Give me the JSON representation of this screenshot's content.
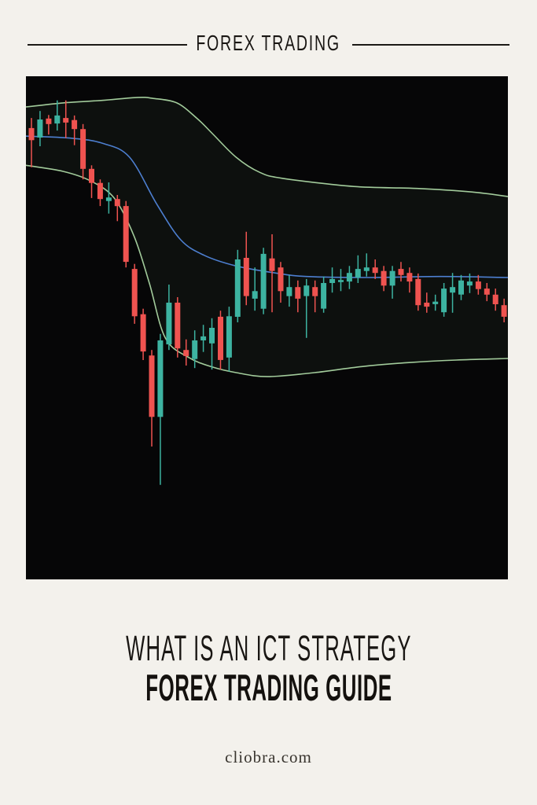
{
  "page": {
    "background": "#f3f1ec"
  },
  "header": {
    "label": "FOREX TRADING"
  },
  "title": {
    "line1": "WHAT IS AN ICT STRATEGY",
    "line2": "FOREX TRADING GUIDE"
  },
  "footer": {
    "site": "cliobra.com"
  },
  "chart_data": {
    "type": "candlestick",
    "title": "",
    "subtitle": "",
    "axes_visible": false,
    "grid": false,
    "legend": false,
    "indicator": "bollinger-bands",
    "background": "#060607",
    "colors": {
      "bullish": "#3db3a1",
      "bearish": "#ef5350",
      "band_line": "#a2cb9b",
      "middle_line": "#4d7fd0",
      "band_fill": "rgba(140,190,140,0.06)"
    },
    "price_scale": {
      "min": 0,
      "max": 100,
      "note": "normalized price units; chart shows no axis labels"
    },
    "candle_fields": [
      "direction(r=bearish,g=bullish)",
      "body_high",
      "body_low",
      "wick_high",
      "wick_low"
    ],
    "candles": [
      [
        "r",
        89.7,
        87.3,
        91.7,
        81.9
      ],
      [
        "g",
        91.4,
        87.8,
        93.1,
        86.1
      ],
      [
        "r",
        91.6,
        90.5,
        92.3,
        88.4
      ],
      [
        "g",
        92.2,
        90.6,
        95.2,
        89.2
      ],
      [
        "r",
        91.7,
        90.8,
        95.2,
        87.7
      ],
      [
        "r",
        91.3,
        89.5,
        92.2,
        86.3
      ],
      [
        "r",
        89.5,
        81.6,
        90.5,
        79.5
      ],
      [
        "r",
        81.6,
        78.8,
        82.3,
        75.8
      ],
      [
        "r",
        78.8,
        75.6,
        79.5,
        74.2
      ],
      [
        "g",
        75.9,
        75.2,
        78.9,
        72.7
      ],
      [
        "r",
        75.6,
        74.2,
        76.4,
        71.2
      ],
      [
        "r",
        74.2,
        63.1,
        75.2,
        62.0
      ],
      [
        "r",
        61.7,
        52.3,
        62.7,
        50.8
      ],
      [
        "r",
        52.7,
        45.3,
        53.8,
        43.6
      ],
      [
        "r",
        44.5,
        32.3,
        45.6,
        26.4
      ],
      [
        "g",
        47.5,
        32.3,
        48.8,
        18.8
      ],
      [
        "g",
        55.0,
        46.7,
        58.6,
        45.6
      ],
      [
        "r",
        55.0,
        45.9,
        56.1,
        44.1
      ],
      [
        "r",
        45.6,
        44.4,
        47.7,
        42.5
      ],
      [
        "g",
        47.5,
        43.8,
        49.5,
        42.0
      ],
      [
        "g",
        48.3,
        47.5,
        50.6,
        45.2
      ],
      [
        "g",
        50.0,
        46.9,
        51.9,
        41.7
      ],
      [
        "r",
        52.2,
        43.6,
        53.4,
        41.7
      ],
      [
        "g",
        52.3,
        44.1,
        54.2,
        41.3
      ],
      [
        "g",
        63.6,
        52.2,
        65.5,
        51.1
      ],
      [
        "r",
        63.9,
        56.3,
        69.1,
        54.5
      ],
      [
        "g",
        57.3,
        55.8,
        62.0,
        53.4
      ],
      [
        "g",
        64.7,
        53.8,
        65.9,
        52.7
      ],
      [
        "r",
        63.8,
        61.3,
        68.6,
        53.1
      ],
      [
        "r",
        62.0,
        57.3,
        63.1,
        55.0
      ],
      [
        "g",
        58.1,
        56.3,
        60.5,
        54.2
      ],
      [
        "r",
        58.1,
        55.8,
        59.4,
        53.1
      ],
      [
        "g",
        58.4,
        56.3,
        59.7,
        48.0
      ],
      [
        "r",
        58.1,
        56.3,
        59.4,
        53.1
      ],
      [
        "g",
        58.9,
        53.8,
        60.2,
        53.0
      ],
      [
        "g",
        59.7,
        58.9,
        62.0,
        57.0
      ],
      [
        "g",
        59.5,
        59.1,
        61.7,
        57.3
      ],
      [
        "g",
        60.9,
        59.2,
        62.3,
        57.7
      ],
      [
        "g",
        61.7,
        60.0,
        64.4,
        58.9
      ],
      [
        "g",
        62.0,
        61.3,
        64.8,
        60.2
      ],
      [
        "r",
        62.0,
        60.9,
        63.6,
        59.7
      ],
      [
        "r",
        61.3,
        58.4,
        62.3,
        57.3
      ],
      [
        "g",
        61.3,
        58.4,
        62.3,
        55.8
      ],
      [
        "r",
        61.7,
        60.5,
        63.1,
        59.2
      ],
      [
        "r",
        60.9,
        59.2,
        62.0,
        57.0
      ],
      [
        "r",
        59.7,
        54.5,
        60.8,
        53.4
      ],
      [
        "r",
        55.0,
        54.2,
        57.0,
        53.0
      ],
      [
        "g",
        55.2,
        54.7,
        56.6,
        53.4
      ],
      [
        "g",
        57.8,
        53.1,
        58.9,
        52.2
      ],
      [
        "g",
        58.1,
        57.0,
        60.9,
        53.0
      ],
      [
        "g",
        59.4,
        56.6,
        60.5,
        55.5
      ],
      [
        "g",
        59.2,
        58.4,
        60.8,
        56.9
      ],
      [
        "r",
        59.2,
        57.7,
        60.5,
        56.6
      ],
      [
        "r",
        57.8,
        56.6,
        58.9,
        55.3
      ],
      [
        "r",
        56.6,
        54.7,
        57.8,
        53.4
      ],
      [
        "r",
        54.5,
        52.2,
        55.8,
        51.1
      ]
    ],
    "bands": {
      "x_unit": "fraction of chart width",
      "upper": [
        [
          0,
          93.9
        ],
        [
          0.077,
          94.7
        ],
        [
          0.158,
          95.2
        ],
        [
          0.232,
          95.8
        ],
        [
          0.264,
          95.6
        ],
        [
          0.313,
          94.7
        ],
        [
          0.354,
          91.7
        ],
        [
          0.387,
          88.6
        ],
        [
          0.436,
          83.9
        ],
        [
          0.485,
          80.9
        ],
        [
          0.533,
          79.7
        ],
        [
          0.68,
          78.1
        ],
        [
          0.811,
          77.7
        ],
        [
          0.925,
          77.0
        ],
        [
          1,
          76.1
        ]
      ],
      "middle": [
        [
          0,
          88.1
        ],
        [
          0.093,
          87.7
        ],
        [
          0.158,
          86.7
        ],
        [
          0.215,
          83.9
        ],
        [
          0.272,
          74.5
        ],
        [
          0.321,
          67.5
        ],
        [
          0.37,
          64.4
        ],
        [
          0.436,
          62.3
        ],
        [
          0.517,
          60.9
        ],
        [
          0.582,
          60.2
        ],
        [
          0.713,
          60.0
        ],
        [
          0.86,
          60.2
        ],
        [
          1,
          60.0
        ]
      ],
      "lower": [
        [
          0,
          82.3
        ],
        [
          0.077,
          81.1
        ],
        [
          0.134,
          79.2
        ],
        [
          0.183,
          75.8
        ],
        [
          0.224,
          68.3
        ],
        [
          0.256,
          58.9
        ],
        [
          0.289,
          48.0
        ],
        [
          0.338,
          44.1
        ],
        [
          0.387,
          42.2
        ],
        [
          0.436,
          41.1
        ],
        [
          0.501,
          40.3
        ],
        [
          0.599,
          41.1
        ],
        [
          0.697,
          42.3
        ],
        [
          0.795,
          43.1
        ],
        [
          0.893,
          43.6
        ],
        [
          1,
          43.9
        ]
      ]
    }
  }
}
